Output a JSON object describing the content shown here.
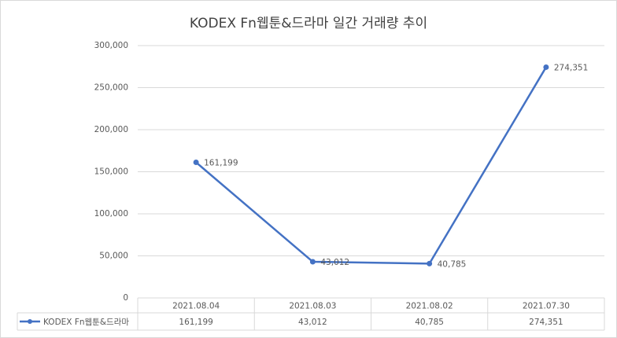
{
  "chart_data": {
    "type": "line",
    "title": "KODEX Fn웹툰&드라마 일간 거래량 추이",
    "categories": [
      "2021.08.04",
      "2021.08.03",
      "2021.08.02",
      "2021.07.30"
    ],
    "series": [
      {
        "name": "KODEX Fn웹툰&드라마",
        "color": "#4472c4",
        "values": [
          161199,
          43012,
          40785,
          274351
        ],
        "value_labels": [
          "161,199",
          "43,012",
          "40,785",
          "274,351"
        ]
      }
    ],
    "ylim": [
      0,
      300000
    ],
    "yticks": [
      0,
      {
        "value": 50000,
        "label": "50,000"
      },
      {
        "value": 100000,
        "label": "100,000"
      },
      {
        "value": 150000,
        "label": "150,000"
      },
      {
        "value": 200000,
        "label": "200,000"
      },
      {
        "value": 250000,
        "label": "250,000"
      },
      {
        "value": 300000,
        "label": "300,000"
      }
    ],
    "grid": true,
    "data_table": true
  }
}
